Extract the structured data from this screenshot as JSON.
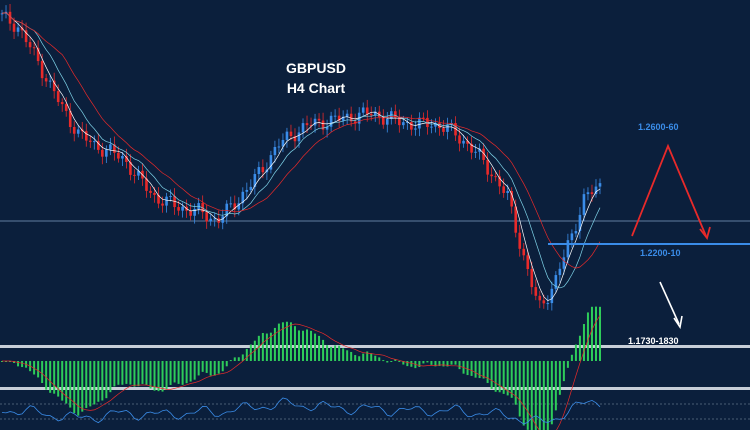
{
  "chart_data": {
    "type": "candlestick",
    "title": "GBPUSD",
    "subtitle": "H4 Chart",
    "series": [
      {
        "name": "",
        "role": "price",
        "close": [
          1.282,
          1.279,
          1.27,
          1.26,
          1.25,
          1.242,
          1.238,
          1.236,
          1.233,
          1.226,
          1.22,
          1.218,
          1.216,
          1.215,
          1.212,
          1.217,
          1.223,
          1.23,
          1.238,
          1.242,
          1.245,
          1.246,
          1.247,
          1.248,
          1.249,
          1.2475,
          1.246,
          1.245,
          1.2455,
          1.244,
          1.24,
          1.235,
          1.228,
          1.22,
          1.2,
          1.182,
          1.19,
          1.205,
          1.22,
          1.224
        ]
      }
    ],
    "annotations": [
      {
        "text": "1.2600-60",
        "color": "#3a8ce8"
      },
      {
        "text": "1.2200-10",
        "color": "#3a8ce8"
      },
      {
        "text": "1.1730-1830",
        "color": "#ffffff"
      }
    ],
    "colors": {
      "background": "#0b1f3c",
      "bull": "#3a8ce8",
      "bear": "#e82a2a",
      "histogram": "#2ecc5a",
      "target_up": "#e82a2a",
      "target_down": "#ffffff"
    }
  }
}
